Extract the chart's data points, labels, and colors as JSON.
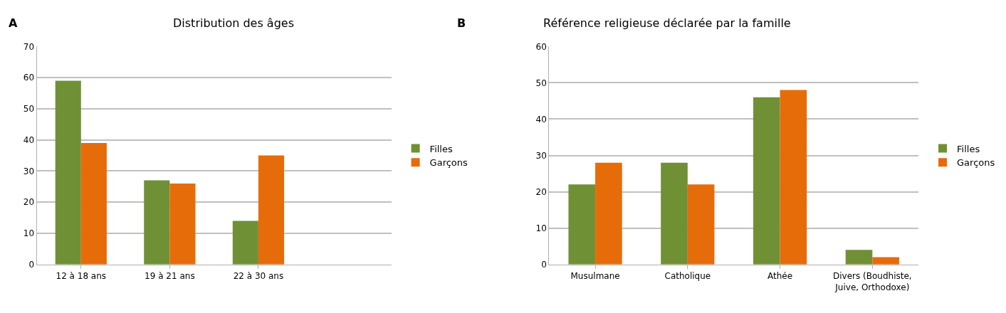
{
  "chart_data": [
    {
      "type": "bar",
      "title": "Distribution des âges",
      "annotations": [
        "A"
      ],
      "categories": [
        "12 à 18 ans",
        "19 à 21 ans",
        "22 à 30 ans",
        null
      ],
      "series": [
        {
          "name": "Filles",
          "color": "#709035",
          "values": [
            59,
            27,
            14,
            null
          ]
        },
        {
          "name": "Garçons",
          "color": "#e66c0a",
          "values": [
            39,
            26,
            35,
            null
          ]
        }
      ],
      "ylim": [
        0,
        70
      ],
      "yticks": [
        0,
        10,
        20,
        30,
        40,
        50,
        60,
        70
      ],
      "grid": "y",
      "legend": "right"
    },
    {
      "type": "bar",
      "title": "Référence religieuse déclarée par la famille",
      "annotations": [
        "B"
      ],
      "categories": [
        "Musulmane",
        "Catholique",
        "Athée",
        "Divers (Boudhiste,\nJuive, Orthodoxe)"
      ],
      "series": [
        {
          "name": "Filles",
          "color": "#709035",
          "values": [
            22,
            28,
            46,
            4
          ]
        },
        {
          "name": "Garçons",
          "color": "#e66c0a",
          "values": [
            28,
            22,
            48,
            2
          ]
        }
      ],
      "ylim": [
        0,
        60
      ],
      "yticks": [
        0,
        10,
        20,
        30,
        40,
        50,
        60
      ],
      "grid": "y",
      "legend": "right"
    }
  ]
}
